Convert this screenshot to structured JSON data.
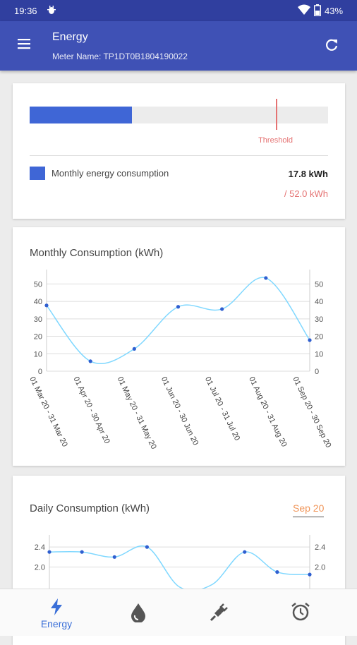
{
  "status_bar": {
    "time": "19:36",
    "battery": "43%"
  },
  "app_bar": {
    "title": "Energy",
    "subtitle": "Meter Name: TP1DT0B1804190022"
  },
  "usage_card": {
    "consumed_fraction": 0.342,
    "threshold_fraction": 0.824,
    "threshold_label": "Threshold",
    "legend_label": "Monthly energy consumption",
    "consumption": "17.8 kWh",
    "threshold_value": "/ 52.0 kWh",
    "bar_color": "#3f66d6",
    "threshold_color": "#e57373"
  },
  "monthly_chart": {
    "title": "Monthly Consumption (kWh)",
    "chart_data": {
      "type": "line",
      "title": "Monthly Consumption (kWh)",
      "categories": [
        "01 Mar 20 - 31 Mar 20",
        "01 Apr 20 - 30 Apr 20",
        "01 May 20 - 31 May 20",
        "01 Jun 20 - 30 Jun 20",
        "01 Jul 20 - 31 Jul 20",
        "01 Aug 20 - 31 Aug 20",
        "01 Sep 20 - 30 Sep 20"
      ],
      "values": [
        37.7,
        5.7,
        12.8,
        36.9,
        35.6,
        53.4,
        17.8
      ],
      "ylim": [
        0,
        55
      ],
      "yticks": [
        "0",
        "10",
        "20",
        "30",
        "40",
        "50"
      ],
      "ytick_values": [
        0,
        10,
        20,
        30,
        40,
        50
      ],
      "grid": true,
      "line_color": "#80d8ff",
      "point_color": "#2f5fd0"
    }
  },
  "daily_chart": {
    "title": "Daily Consumption (kWh)",
    "month": "Sep 20",
    "chart_data": {
      "type": "line",
      "title": "Daily Consumption (kWh)",
      "values": [
        2.3,
        2.3,
        2.2,
        2.4,
        1.6,
        1.65,
        2.3,
        1.9,
        1.85
      ],
      "ylim": [
        1.5,
        2.5
      ],
      "yticks": [
        "2.0",
        "2.4"
      ],
      "ytick_values": [
        2.0,
        2.4
      ],
      "grid": true,
      "line_color": "#80d8ff",
      "point_color": "#2f5fd0"
    }
  },
  "bottom_nav": {
    "items": [
      {
        "label": "Energy",
        "icon": "bolt-icon",
        "active": true
      },
      {
        "label": "",
        "icon": "water-drop-icon",
        "active": false
      },
      {
        "label": "",
        "icon": "plug-icon",
        "active": false
      },
      {
        "label": "",
        "icon": "alarm-clock-icon",
        "active": false
      }
    ],
    "active_color": "#3a6fd8",
    "inactive_color": "#555555"
  }
}
